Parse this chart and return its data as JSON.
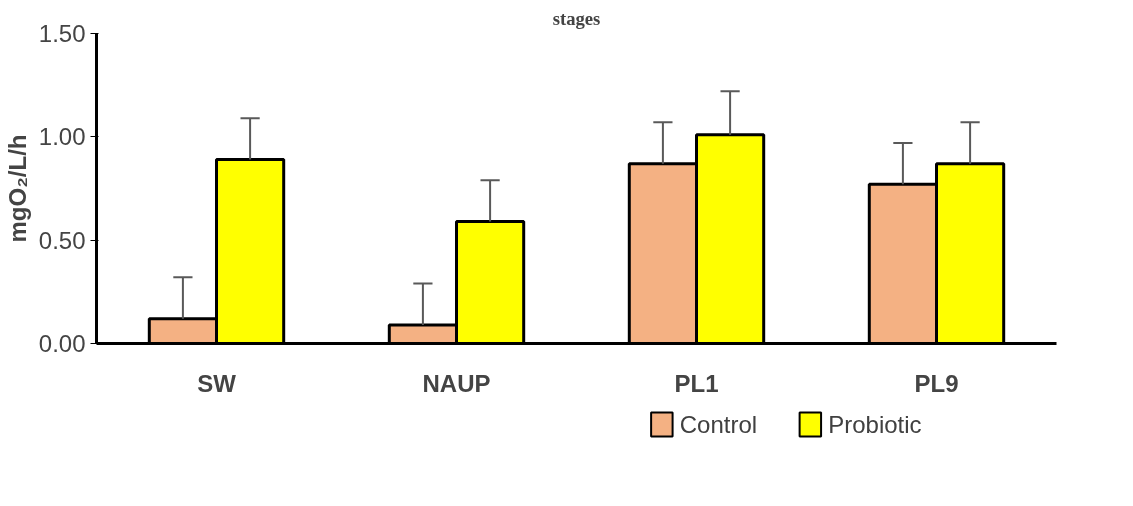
{
  "chart_data": {
    "type": "bar",
    "title": "stages",
    "ylabel": "mgO₂/L/h",
    "categories": [
      "SW",
      "NAUP",
      "PL1",
      "PL9"
    ],
    "series": [
      {
        "name": "Control",
        "color": "#f4b183",
        "values": [
          0.12,
          0.09,
          0.87,
          0.77
        ],
        "errors": [
          [
            0.12,
            0.32
          ],
          [
            0.09,
            0.29
          ],
          [
            0.87,
            1.07
          ],
          [
            0.77,
            0.97
          ]
        ]
      },
      {
        "name": "Probiotic",
        "color": "#ffff00",
        "values": [
          0.89,
          0.59,
          1.01,
          0.87
        ],
        "errors": [
          [
            0.89,
            1.09
          ],
          [
            0.59,
            0.79
          ],
          [
            1.01,
            1.22
          ],
          [
            0.87,
            1.07
          ]
        ]
      }
    ],
    "ylim": [
      0,
      1.5
    ],
    "yticks": [
      {
        "value": 0,
        "label": "0.00"
      },
      {
        "value": 0.5,
        "label": "0.50"
      },
      {
        "value": 1,
        "label": "1.00"
      },
      {
        "value": 1.5,
        "label": "1.50"
      }
    ],
    "grid": false,
    "legend": "bottom"
  }
}
